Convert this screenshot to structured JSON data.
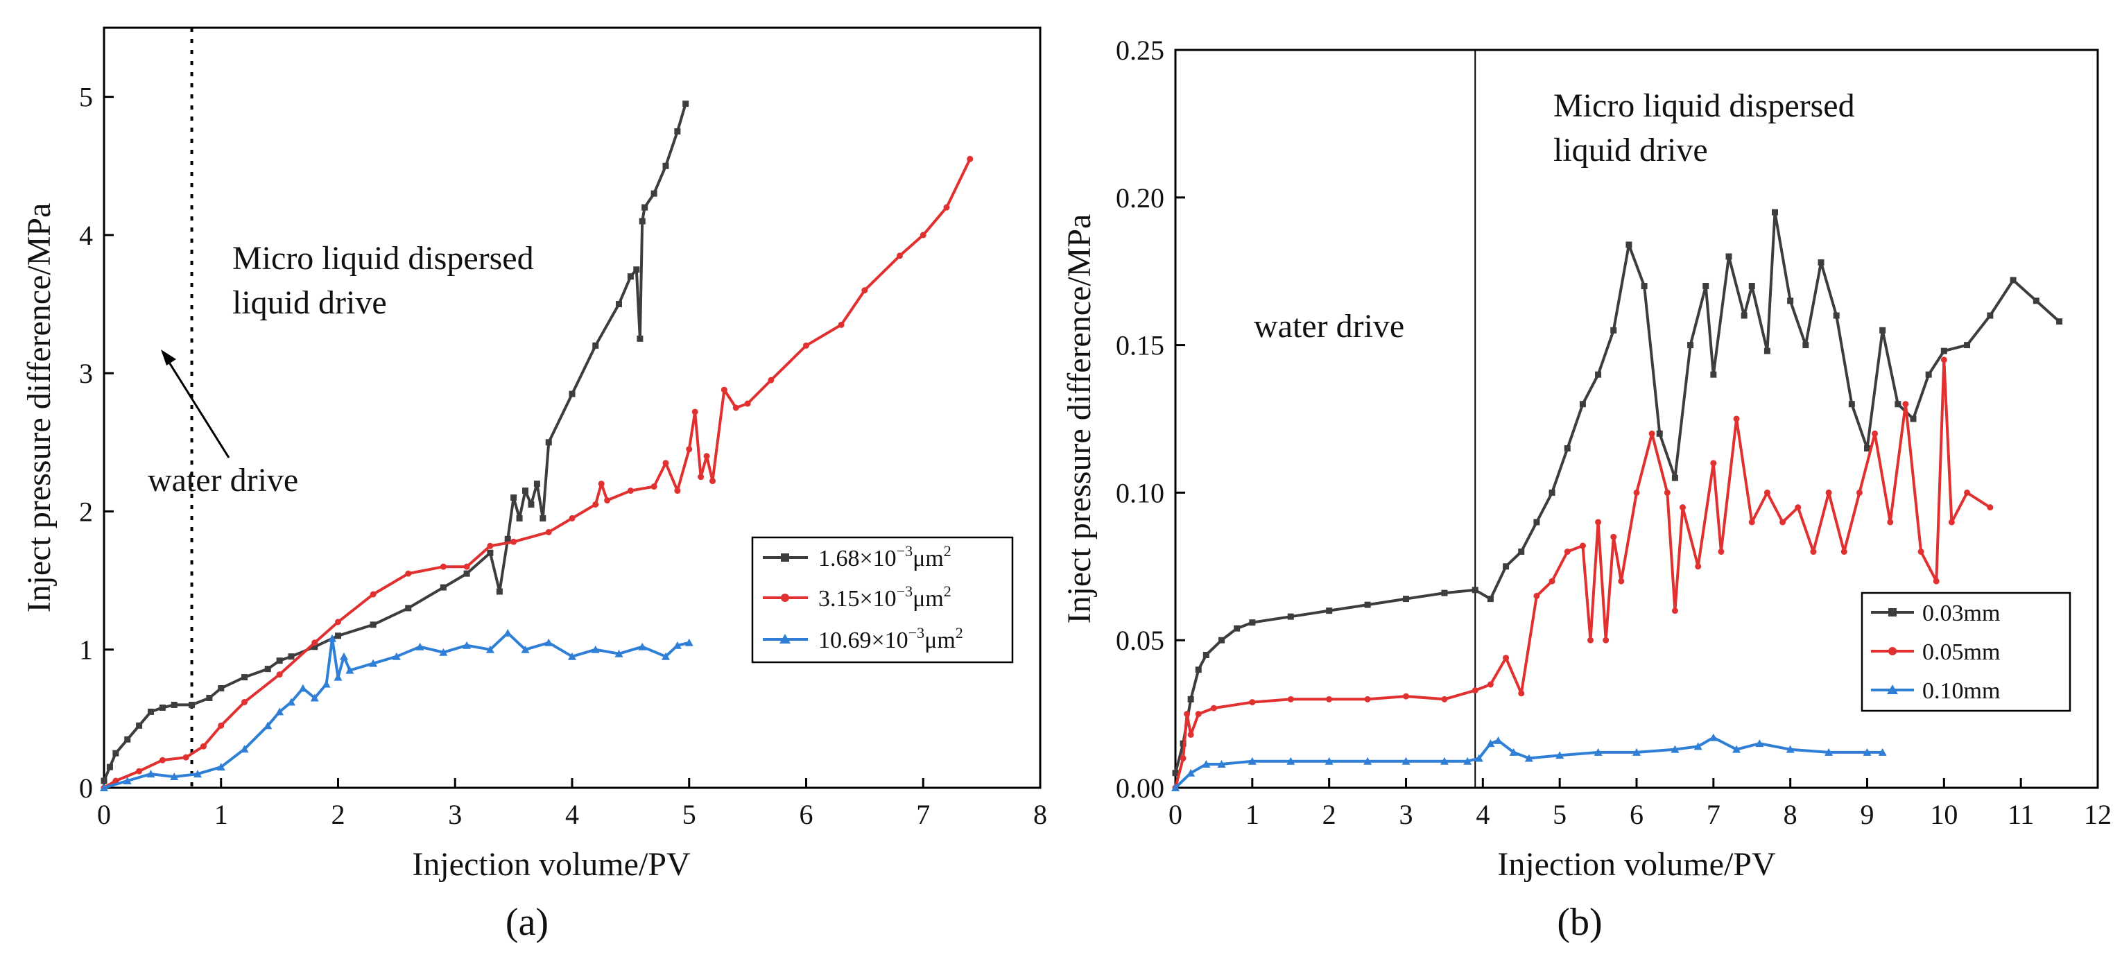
{
  "chart_data": [
    {
      "type": "line",
      "panel_label": "(a)",
      "xlabel": "Injection volume/PV",
      "ylabel": "Inject pressure difference/MPa",
      "xlim": [
        0,
        8
      ],
      "ylim": [
        0,
        5.5
      ],
      "xticks": [
        "0",
        "1",
        "2",
        "3",
        "4",
        "5",
        "6",
        "7",
        "8"
      ],
      "yticks": [
        "0",
        "1",
        "2",
        "3",
        "4",
        "5"
      ],
      "legend_position": "lower-right",
      "annotations": {
        "stage_line_x": 0.75,
        "drive2": "Micro liquid dispersed",
        "drive2_line2": "liquid drive",
        "drive1": "water drive"
      },
      "series": [
        {
          "name": "1.68×10⁻³μm²",
          "label_base": "1.68×10",
          "label_exp": "−3",
          "label_unit": "μm",
          "label_sup2": "2",
          "color": "#3d3d3d",
          "marker": "square",
          "x": [
            0,
            0.05,
            0.1,
            0.2,
            0.3,
            0.4,
            0.5,
            0.6,
            0.75,
            0.9,
            1.0,
            1.2,
            1.4,
            1.5,
            1.6,
            1.8,
            2.0,
            2.3,
            2.6,
            2.9,
            3.1,
            3.3,
            3.38,
            3.45,
            3.5,
            3.55,
            3.6,
            3.65,
            3.7,
            3.75,
            3.8,
            4.0,
            4.2,
            4.4,
            4.5,
            4.55,
            4.58,
            4.6,
            4.62,
            4.7,
            4.8,
            4.9,
            4.97
          ],
          "y": [
            0.05,
            0.15,
            0.25,
            0.35,
            0.45,
            0.55,
            0.58,
            0.6,
            0.6,
            0.65,
            0.72,
            0.8,
            0.86,
            0.92,
            0.95,
            1.02,
            1.1,
            1.18,
            1.3,
            1.45,
            1.55,
            1.7,
            1.42,
            1.8,
            2.1,
            1.95,
            2.15,
            2.05,
            2.2,
            1.95,
            2.5,
            2.85,
            3.2,
            3.5,
            3.7,
            3.75,
            3.25,
            4.1,
            4.2,
            4.3,
            4.5,
            4.75,
            4.95
          ]
        },
        {
          "name": "3.15×10⁻³μm²",
          "label_base": "3.15×10",
          "label_exp": "−3",
          "label_unit": "μm",
          "label_sup2": "2",
          "color": "#e03030",
          "marker": "dot",
          "x": [
            0,
            0.1,
            0.3,
            0.5,
            0.7,
            0.85,
            1.0,
            1.2,
            1.5,
            1.8,
            2.0,
            2.3,
            2.6,
            2.9,
            3.1,
            3.3,
            3.5,
            3.8,
            4.0,
            4.2,
            4.25,
            4.3,
            4.5,
            4.7,
            4.8,
            4.9,
            5.0,
            5.05,
            5.1,
            5.15,
            5.2,
            5.3,
            5.4,
            5.5,
            5.7,
            6.0,
            6.3,
            6.5,
            6.8,
            7.0,
            7.2,
            7.4
          ],
          "y": [
            0,
            0.05,
            0.12,
            0.2,
            0.22,
            0.3,
            0.45,
            0.62,
            0.82,
            1.05,
            1.2,
            1.4,
            1.55,
            1.6,
            1.6,
            1.75,
            1.78,
            1.85,
            1.95,
            2.05,
            2.2,
            2.08,
            2.15,
            2.18,
            2.35,
            2.15,
            2.45,
            2.72,
            2.25,
            2.4,
            2.22,
            2.88,
            2.75,
            2.78,
            2.95,
            3.2,
            3.35,
            3.6,
            3.85,
            4.0,
            4.2,
            4.55
          ]
        },
        {
          "name": "10.69×10⁻³μm²",
          "label_base": "10.69×10",
          "label_exp": "−3",
          "label_unit": "μm",
          "label_sup2": "2",
          "color": "#2f7fd6",
          "marker": "triangle",
          "x": [
            0,
            0.2,
            0.4,
            0.6,
            0.8,
            1.0,
            1.2,
            1.4,
            1.5,
            1.6,
            1.7,
            1.8,
            1.9,
            1.95,
            2.0,
            2.05,
            2.1,
            2.3,
            2.5,
            2.7,
            2.9,
            3.1,
            3.3,
            3.45,
            3.6,
            3.8,
            4.0,
            4.2,
            4.4,
            4.6,
            4.8,
            4.9,
            5.0
          ],
          "y": [
            0,
            0.05,
            0.1,
            0.08,
            0.1,
            0.15,
            0.28,
            0.45,
            0.55,
            0.62,
            0.72,
            0.65,
            0.75,
            1.08,
            0.8,
            0.95,
            0.85,
            0.9,
            0.95,
            1.02,
            0.98,
            1.03,
            1.0,
            1.12,
            1.0,
            1.05,
            0.95,
            1.0,
            0.97,
            1.02,
            0.95,
            1.03,
            1.05
          ]
        }
      ]
    },
    {
      "type": "line",
      "panel_label": "(b)",
      "xlabel": "Injection volume/PV",
      "ylabel": "Inject pressure difference/MPa",
      "xlim": [
        0,
        12
      ],
      "ylim": [
        0,
        0.25
      ],
      "xticks": [
        "0",
        "1",
        "2",
        "3",
        "4",
        "5",
        "6",
        "7",
        "8",
        "9",
        "10",
        "11",
        "12"
      ],
      "yticks": [
        "0.00",
        "0.05",
        "0.10",
        "0.15",
        "0.20",
        "0.25"
      ],
      "legend_position": "lower-right",
      "annotations": {
        "stage_line_x": 3.9,
        "drive2": "Micro liquid dispersed",
        "drive2_line2": "liquid drive",
        "drive1": "water drive"
      },
      "series": [
        {
          "name": "0.03mm",
          "color": "#3d3d3d",
          "marker": "square",
          "x": [
            0,
            0.1,
            0.2,
            0.3,
            0.4,
            0.6,
            0.8,
            1.0,
            1.5,
            2.0,
            2.5,
            3.0,
            3.5,
            3.9,
            4.1,
            4.3,
            4.5,
            4.7,
            4.9,
            5.1,
            5.3,
            5.5,
            5.7,
            5.9,
            6.1,
            6.3,
            6.5,
            6.7,
            6.9,
            7.0,
            7.2,
            7.4,
            7.5,
            7.7,
            7.8,
            8.0,
            8.2,
            8.4,
            8.6,
            8.8,
            9.0,
            9.2,
            9.4,
            9.6,
            9.8,
            10.0,
            10.3,
            10.6,
            10.9,
            11.2,
            11.5
          ],
          "y": [
            0.005,
            0.015,
            0.03,
            0.04,
            0.045,
            0.05,
            0.054,
            0.056,
            0.058,
            0.06,
            0.062,
            0.064,
            0.066,
            0.067,
            0.064,
            0.075,
            0.08,
            0.09,
            0.1,
            0.115,
            0.13,
            0.14,
            0.155,
            0.184,
            0.17,
            0.12,
            0.105,
            0.15,
            0.17,
            0.14,
            0.18,
            0.16,
            0.17,
            0.148,
            0.195,
            0.165,
            0.15,
            0.178,
            0.16,
            0.13,
            0.115,
            0.155,
            0.13,
            0.125,
            0.14,
            0.148,
            0.15,
            0.16,
            0.172,
            0.165,
            0.158
          ]
        },
        {
          "name": "0.05mm",
          "color": "#e03030",
          "marker": "dot",
          "x": [
            0,
            0.1,
            0.15,
            0.2,
            0.3,
            0.5,
            1.0,
            1.5,
            2.0,
            2.5,
            3.0,
            3.5,
            3.9,
            4.1,
            4.3,
            4.5,
            4.7,
            4.9,
            5.1,
            5.3,
            5.4,
            5.5,
            5.6,
            5.7,
            5.8,
            6.0,
            6.2,
            6.4,
            6.5,
            6.6,
            6.8,
            7.0,
            7.1,
            7.3,
            7.5,
            7.7,
            7.9,
            8.1,
            8.3,
            8.5,
            8.7,
            8.9,
            9.1,
            9.3,
            9.5,
            9.7,
            9.9,
            10.0,
            10.1,
            10.3,
            10.6
          ],
          "y": [
            0.0,
            0.01,
            0.025,
            0.018,
            0.025,
            0.027,
            0.029,
            0.03,
            0.03,
            0.03,
            0.031,
            0.03,
            0.033,
            0.035,
            0.044,
            0.032,
            0.065,
            0.07,
            0.08,
            0.082,
            0.05,
            0.09,
            0.05,
            0.085,
            0.07,
            0.1,
            0.12,
            0.1,
            0.06,
            0.095,
            0.075,
            0.11,
            0.08,
            0.125,
            0.09,
            0.1,
            0.09,
            0.095,
            0.08,
            0.1,
            0.08,
            0.1,
            0.12,
            0.09,
            0.13,
            0.08,
            0.07,
            0.145,
            0.09,
            0.1,
            0.095
          ]
        },
        {
          "name": "0.10mm",
          "color": "#2f7fd6",
          "marker": "triangle",
          "x": [
            0,
            0.2,
            0.4,
            0.6,
            1.0,
            1.5,
            2.0,
            2.5,
            3.0,
            3.5,
            3.8,
            3.95,
            4.1,
            4.2,
            4.4,
            4.6,
            5.0,
            5.5,
            6.0,
            6.5,
            6.8,
            7.0,
            7.3,
            7.6,
            8.0,
            8.5,
            9.0,
            9.2
          ],
          "y": [
            0.0,
            0.005,
            0.008,
            0.008,
            0.009,
            0.009,
            0.009,
            0.009,
            0.009,
            0.009,
            0.009,
            0.01,
            0.015,
            0.016,
            0.012,
            0.01,
            0.011,
            0.012,
            0.012,
            0.013,
            0.014,
            0.017,
            0.013,
            0.015,
            0.013,
            0.012,
            0.012,
            0.012
          ]
        }
      ]
    }
  ]
}
